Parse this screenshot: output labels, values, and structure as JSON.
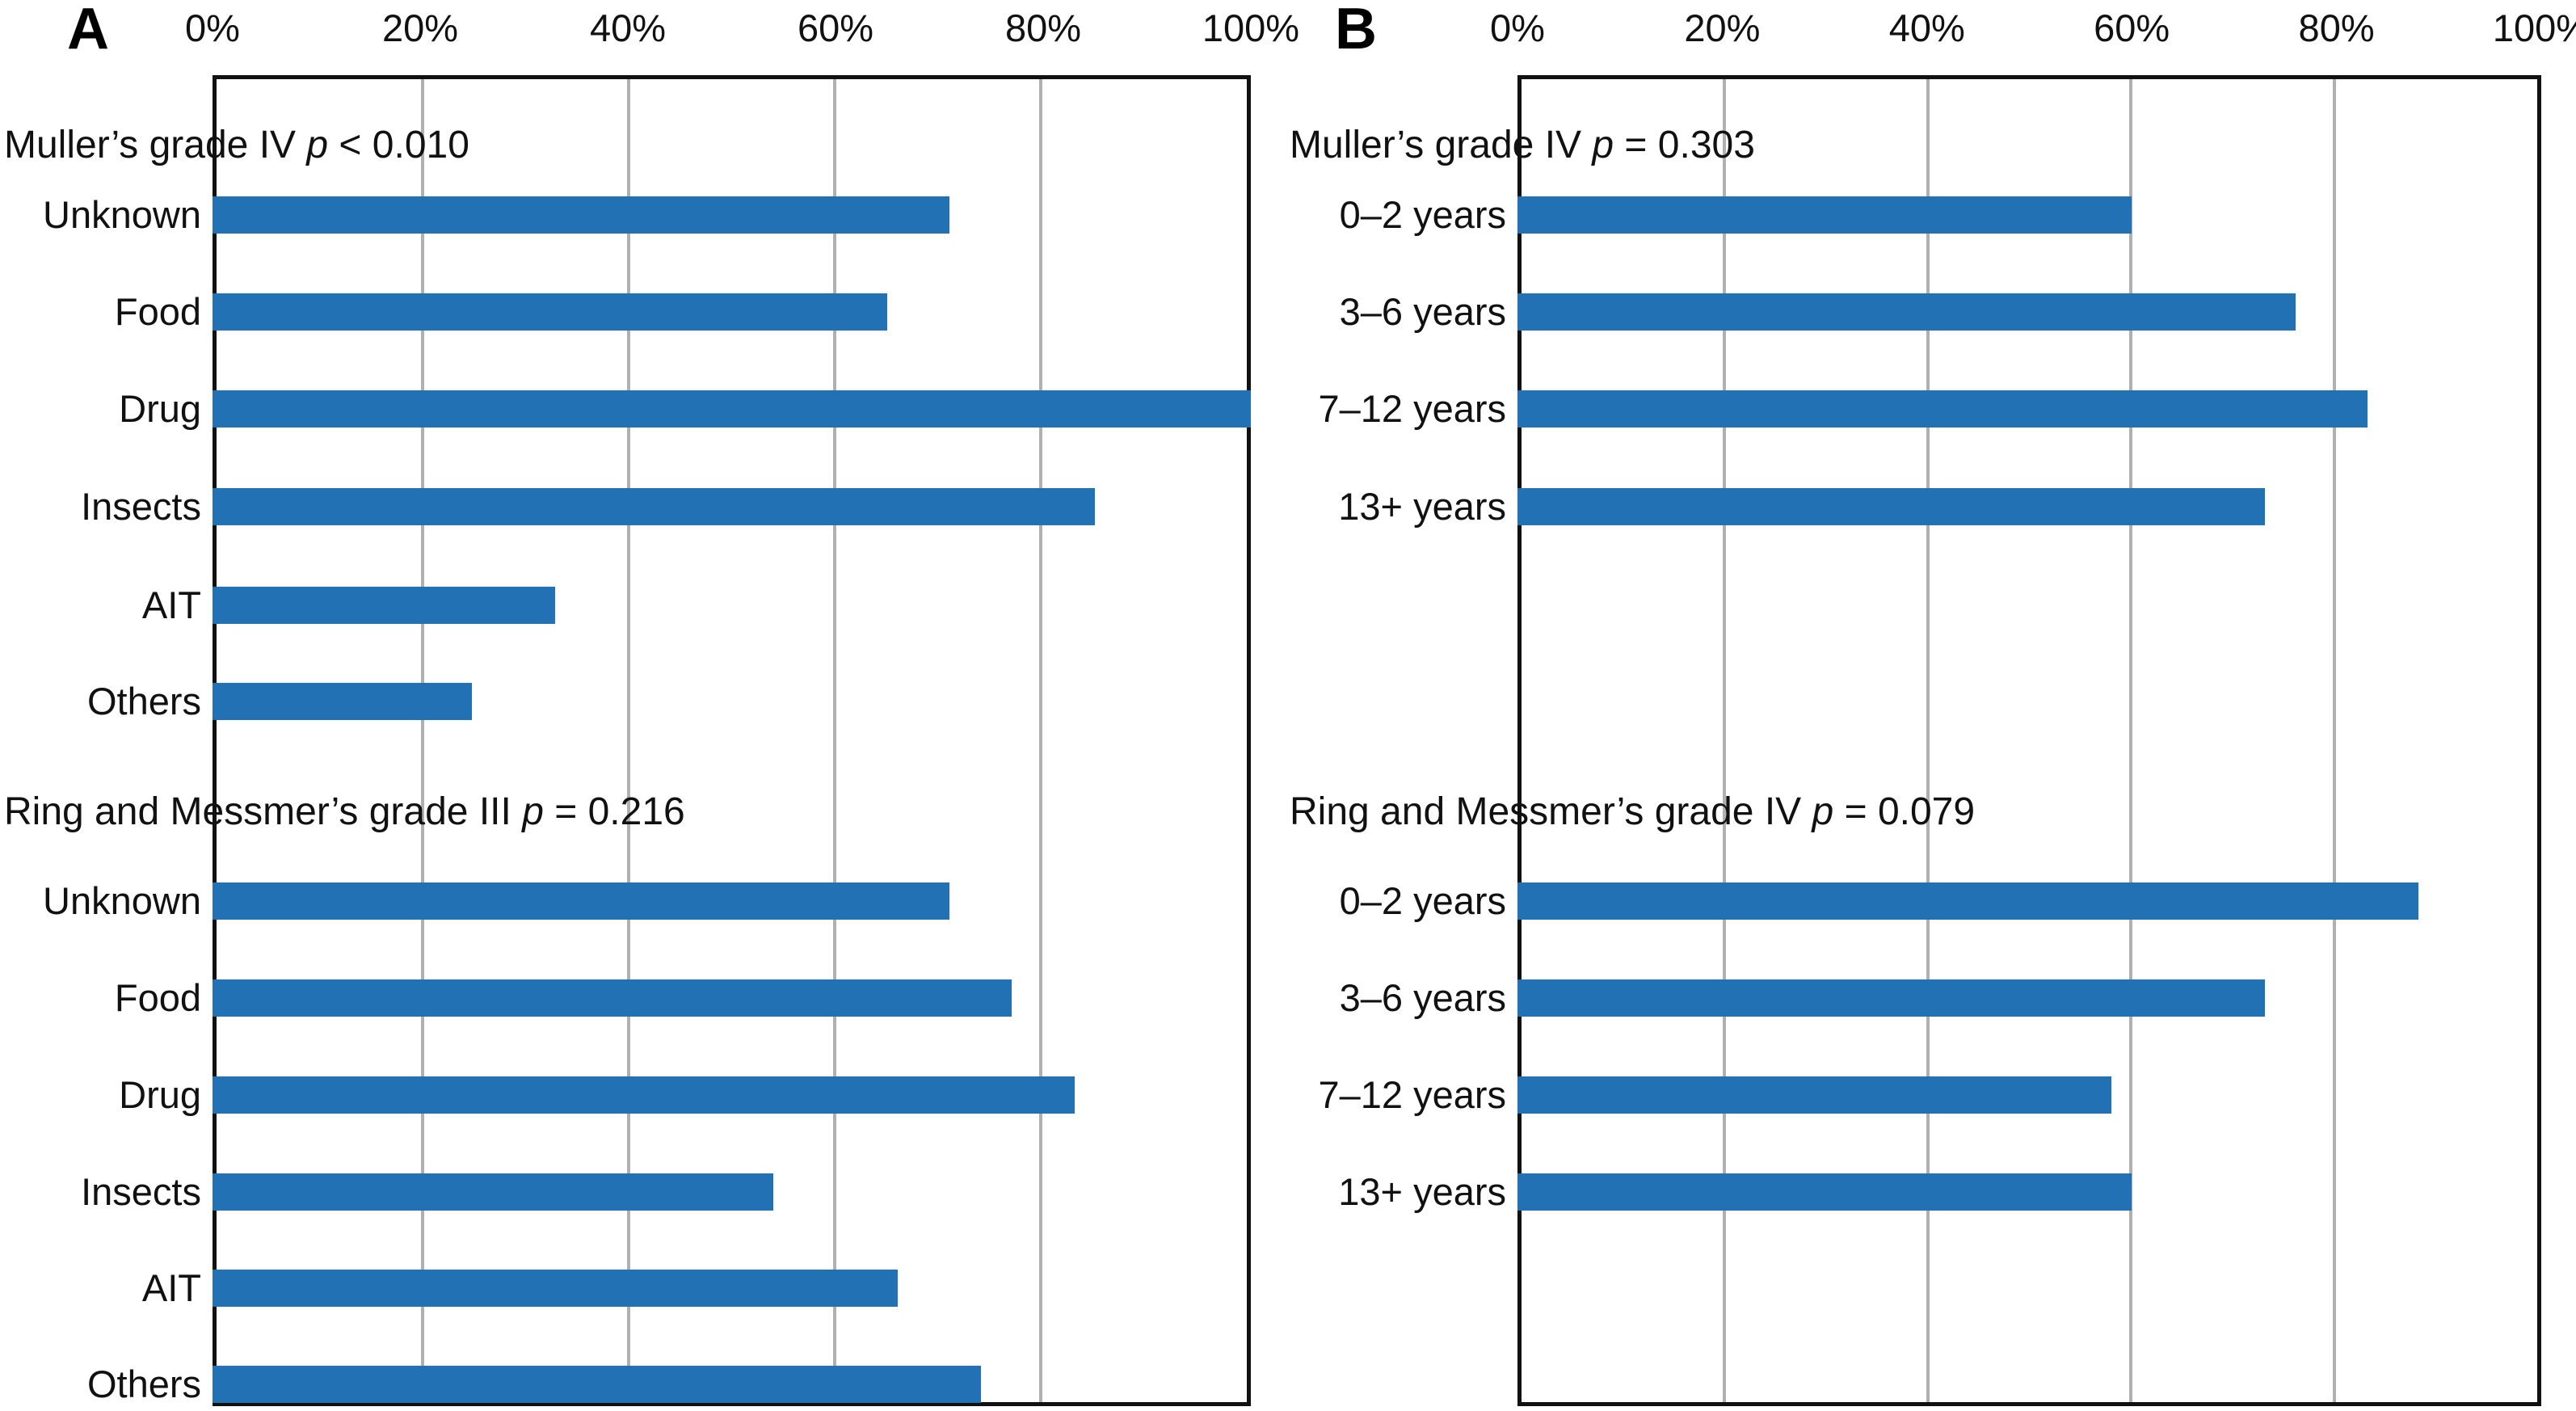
{
  "figure": {
    "panel_a_label": "A",
    "panel_b_label": "B",
    "bar_color": "#2271b4",
    "gridline_color": "#b0b0b0",
    "border_color": "#111111",
    "text_color": "#111111",
    "axis_tick_labels": [
      "0%",
      "20%",
      "40%",
      "60%",
      "80%",
      "100%"
    ]
  },
  "chart_data": [
    {
      "type": "bar",
      "panel": "A",
      "orientation": "horizontal",
      "xlim": [
        0,
        100
      ],
      "x_ticks_percent": [
        0,
        20,
        40,
        60,
        80,
        100
      ],
      "grid": true,
      "legend": false,
      "groups": [
        {
          "title_prefix": "Muller’s grade IV",
          "p_symbol": "p",
          "p_rest": "< 0.010",
          "categories": [
            "Unknown",
            "Food",
            "Drug",
            "Insects",
            "AIT",
            "Others"
          ],
          "values": [
            71,
            65,
            100,
            85,
            33,
            25
          ]
        },
        {
          "title_prefix": "Ring and Messmer’s grade III",
          "p_symbol": "p",
          "p_rest": "= 0.216",
          "categories": [
            "Unknown",
            "Food",
            "Drug",
            "Insects",
            "AIT",
            "Others"
          ],
          "values": [
            71,
            77,
            83,
            54,
            66,
            74
          ]
        }
      ]
    },
    {
      "type": "bar",
      "panel": "B",
      "orientation": "horizontal",
      "xlim": [
        0,
        100
      ],
      "x_ticks_percent": [
        0,
        20,
        40,
        60,
        80,
        100
      ],
      "grid": true,
      "legend": false,
      "groups": [
        {
          "title_prefix": "Muller’s grade IV",
          "p_symbol": "p",
          "p_rest": "= 0.303",
          "categories": [
            "0–2 years",
            "3–6 years",
            "7–12 years",
            "13+ years"
          ],
          "values": [
            60,
            76,
            83,
            73
          ]
        },
        {
          "title_prefix": "Ring and Messmer’s grade IV",
          "p_symbol": "p",
          "p_rest": "= 0.079",
          "categories": [
            "0–2 years",
            "3–6 years",
            "7–12 years",
            "13+ years"
          ],
          "values": [
            88,
            73,
            58,
            60
          ]
        }
      ]
    }
  ]
}
